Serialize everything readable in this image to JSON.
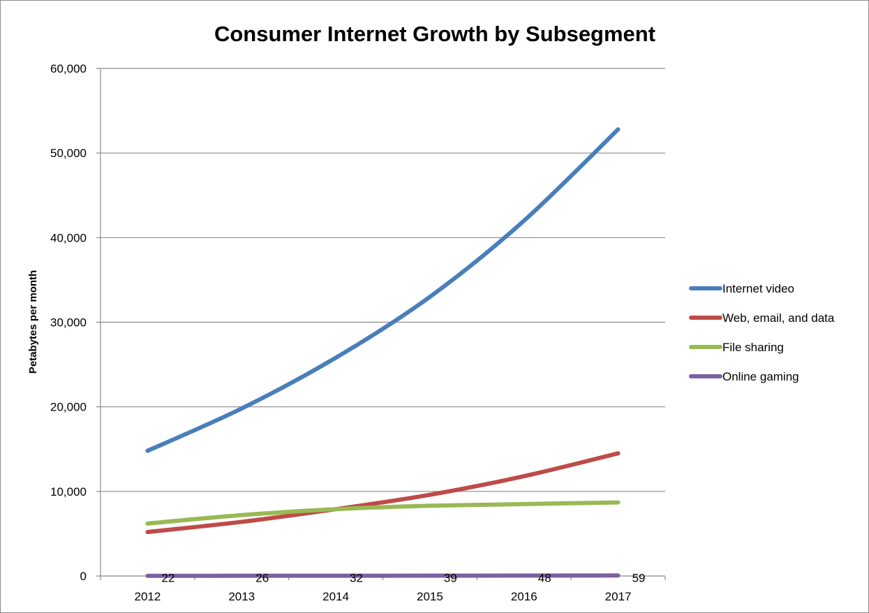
{
  "chart_data": {
    "type": "line",
    "title": "Consumer Internet Growth by Subsegment",
    "xlabel": "",
    "ylabel": "Petabytes per month",
    "categories": [
      "2012",
      "2013",
      "2014",
      "2015",
      "2016",
      "2017"
    ],
    "ylim": [
      0,
      60000
    ],
    "yticks": [
      0,
      10000,
      20000,
      30000,
      40000,
      50000,
      60000
    ],
    "ytick_labels": [
      "0",
      "10,000",
      "20,000",
      "30,000",
      "40,000",
      "50,000",
      "60,000"
    ],
    "grid": true,
    "legend_position": "right",
    "series": [
      {
        "name": "Internet video",
        "color": "#4a7ebb",
        "values": [
          14800,
          19800,
          25800,
          33000,
          42000,
          52800
        ]
      },
      {
        "name": "Web, email, and data",
        "color": "#be4b48",
        "values": [
          5200,
          6400,
          7900,
          9600,
          11800,
          14500
        ]
      },
      {
        "name": "File sharing",
        "color": "#98b954",
        "values": [
          6200,
          7200,
          7900,
          8300,
          8500,
          8700
        ]
      },
      {
        "name": "Online gaming",
        "color": "#7d60a0",
        "values": [
          22,
          26,
          32,
          39,
          48,
          59
        ],
        "data_labels": [
          "22",
          "26",
          "32",
          "39",
          "48",
          "59"
        ]
      }
    ]
  }
}
